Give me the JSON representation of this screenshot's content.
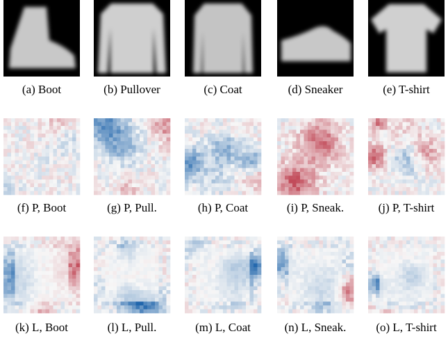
{
  "figure": {
    "panels": [
      {
        "caption": "(a) Boot"
      },
      {
        "caption": "(b) Pullover"
      },
      {
        "caption": "(c) Coat"
      },
      {
        "caption": "(d) Sneaker"
      },
      {
        "caption": "(e) T-shirt"
      },
      {
        "caption": "(f) P, Boot"
      },
      {
        "caption": "(g) P, Pull."
      },
      {
        "caption": "(h) P, Coat"
      },
      {
        "caption": "(i) P, Sneak."
      },
      {
        "caption": "(j) P, T-shirt"
      },
      {
        "caption": "(k) L, Boot"
      },
      {
        "caption": "(l) L, Pull."
      },
      {
        "caption": "(m) L, Coat"
      },
      {
        "caption": "(n) L, Sneak."
      },
      {
        "caption": "(o) L, T-shirt"
      }
    ]
  }
}
